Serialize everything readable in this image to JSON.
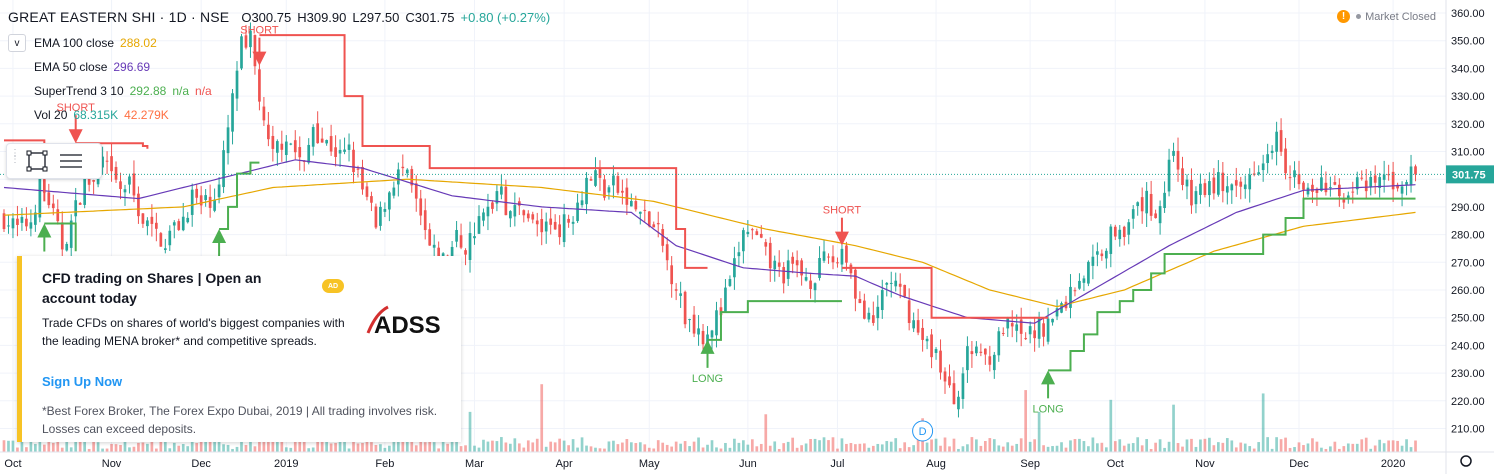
{
  "header": {
    "symbol": "GREAT EASTERN SHI · 1D · NSE",
    "open": "O300.75",
    "high": "H309.90",
    "low": "L297.50",
    "close": "C301.75",
    "change": "+0.80 (+0.27%)"
  },
  "status": {
    "warning_icon": "!",
    "text": "Market Closed"
  },
  "legend": {
    "ema100": {
      "label": "EMA 100 close",
      "value": "288.02",
      "color": "#e6a700"
    },
    "ema50": {
      "label": "EMA 50 close",
      "value": "296.69",
      "color": "#673ab7"
    },
    "supertrend": {
      "label": "SuperTrend 3 10",
      "value": "292.88",
      "na1": "n/a",
      "na2": "n/a",
      "color": "#4caf50"
    },
    "volume": {
      "label": "Vol 20",
      "value": "68.315K",
      "avg": "42.279K"
    }
  },
  "collapse_glyph": "v",
  "ad": {
    "title": "CFD trading on Shares | Open an account today",
    "badge": "AD",
    "logo_text": "ADSS",
    "body": "Trade CFDs on shares of world's biggest companies with the leading MENA broker* and competitive spreads.",
    "cta": "Sign Up Now",
    "disclaimer": "*Best Forex Broker, The Forex Expo Dubai, 2019 | All trading involves risk. Losses can exceed deposits."
  },
  "chart_data": {
    "type": "candlestick",
    "price_ticks": [
      210,
      220,
      230,
      240,
      250,
      260,
      270,
      280,
      290,
      300,
      310,
      320,
      330,
      340,
      350,
      360
    ],
    "price_tick_labels": [
      "210.00",
      "220.00",
      "230.00",
      "240.00",
      "250.00",
      "260.00",
      "270.00",
      "280.00",
      "290.00",
      "300.00",
      "310.00",
      "320.00",
      "330.00",
      "340.00",
      "350.00",
      "360.00"
    ],
    "ylim": [
      205,
      361
    ],
    "last_price": 301.75,
    "last_price_label": "301.75",
    "time_labels": [
      {
        "label": "Oct",
        "bar": 2
      },
      {
        "label": "Nov",
        "bar": 24
      },
      {
        "label": "Dec",
        "bar": 44
      },
      {
        "label": "2019",
        "bar": 63
      },
      {
        "label": "Feb",
        "bar": 85
      },
      {
        "label": "Mar",
        "bar": 105
      },
      {
        "label": "Apr",
        "bar": 125
      },
      {
        "label": "May",
        "bar": 144
      },
      {
        "label": "Jun",
        "bar": 166
      },
      {
        "label": "Jul",
        "bar": 186
      },
      {
        "label": "Aug",
        "bar": 208
      },
      {
        "label": "Sep",
        "bar": 229
      },
      {
        "label": "Oct",
        "bar": 248
      },
      {
        "label": "Nov",
        "bar": 268
      },
      {
        "label": "Dec",
        "bar": 289
      },
      {
        "label": "2020",
        "bar": 310
      }
    ],
    "bar_count": 316,
    "close_anchors": [
      [
        0,
        286
      ],
      [
        3,
        282
      ],
      [
        6,
        285
      ],
      [
        8,
        298
      ],
      [
        10,
        292
      ],
      [
        13,
        276
      ],
      [
        15,
        284
      ],
      [
        18,
        300
      ],
      [
        20,
        298
      ],
      [
        22,
        306
      ],
      [
        24,
        300
      ],
      [
        26,
        296
      ],
      [
        28,
        298
      ],
      [
        31,
        285
      ],
      [
        34,
        280
      ],
      [
        36,
        278
      ],
      [
        38,
        282
      ],
      [
        40,
        286
      ],
      [
        42,
        294
      ],
      [
        44,
        290
      ],
      [
        46,
        293
      ],
      [
        48,
        297
      ],
      [
        50,
        318
      ],
      [
        51,
        328
      ],
      [
        52,
        340
      ],
      [
        53,
        348
      ],
      [
        54,
        345
      ],
      [
        55,
        350
      ],
      [
        56,
        340
      ],
      [
        57,
        330
      ],
      [
        58,
        318
      ],
      [
        59,
        312
      ],
      [
        60,
        308
      ],
      [
        61,
        312
      ],
      [
        63,
        316
      ],
      [
        65,
        310
      ],
      [
        67,
        304
      ],
      [
        69,
        320
      ],
      [
        71,
        314
      ],
      [
        73,
        312
      ],
      [
        75,
        308
      ],
      [
        77,
        310
      ],
      [
        78,
        305
      ],
      [
        80,
        296
      ],
      [
        82,
        288
      ],
      [
        83,
        282
      ],
      [
        85,
        292
      ],
      [
        87,
        300
      ],
      [
        89,
        303
      ],
      [
        91,
        296
      ],
      [
        93,
        285
      ],
      [
        95,
        275
      ],
      [
        97,
        270
      ],
      [
        99,
        272
      ],
      [
        101,
        279
      ],
      [
        103,
        275
      ],
      [
        105,
        282
      ],
      [
        107,
        286
      ],
      [
        109,
        292
      ],
      [
        111,
        300
      ],
      [
        112,
        290
      ],
      [
        114,
        288
      ],
      [
        116,
        290
      ],
      [
        118,
        284
      ],
      [
        120,
        282
      ],
      [
        122,
        284
      ],
      [
        124,
        283
      ],
      [
        126,
        285
      ],
      [
        128,
        292
      ],
      [
        130,
        300
      ],
      [
        132,
        302
      ],
      [
        134,
        296
      ],
      [
        136,
        298
      ],
      [
        138,
        294
      ],
      [
        140,
        290
      ],
      [
        142,
        288
      ],
      [
        144,
        284
      ],
      [
        146,
        280
      ],
      [
        148,
        270
      ],
      [
        150,
        262
      ],
      [
        152,
        250
      ],
      [
        154,
        248
      ],
      [
        156,
        244
      ],
      [
        158,
        248
      ],
      [
        160,
        252
      ],
      [
        161,
        258
      ],
      [
        162,
        262
      ],
      [
        163,
        268
      ],
      [
        164,
        275
      ],
      [
        165,
        280
      ],
      [
        166,
        282
      ],
      [
        168,
        278
      ],
      [
        170,
        272
      ],
      [
        172,
        268
      ],
      [
        174,
        266
      ],
      [
        176,
        268
      ],
      [
        178,
        266
      ],
      [
        180,
        264
      ],
      [
        182,
        268
      ],
      [
        184,
        272
      ],
      [
        186,
        270
      ],
      [
        187,
        276
      ],
      [
        188,
        272
      ],
      [
        190,
        260
      ],
      [
        192,
        250
      ],
      [
        194,
        246
      ],
      [
        196,
        260
      ],
      [
        198,
        264
      ],
      [
        200,
        258
      ],
      [
        202,
        252
      ],
      [
        204,
        244
      ],
      [
        206,
        240
      ],
      [
        208,
        238
      ],
      [
        210,
        226
      ],
      [
        212,
        220
      ],
      [
        213,
        225
      ],
      [
        215,
        236
      ],
      [
        217,
        240
      ],
      [
        219,
        236
      ],
      [
        221,
        238
      ],
      [
        223,
        246
      ],
      [
        225,
        246
      ],
      [
        227,
        242
      ],
      [
        229,
        244
      ],
      [
        231,
        246
      ],
      [
        233,
        248
      ],
      [
        235,
        252
      ],
      [
        237,
        256
      ],
      [
        239,
        262
      ],
      [
        241,
        266
      ],
      [
        243,
        270
      ],
      [
        245,
        275
      ],
      [
        247,
        280
      ],
      [
        249,
        284
      ],
      [
        251,
        282
      ],
      [
        253,
        290
      ],
      [
        255,
        292
      ],
      [
        257,
        288
      ],
      [
        259,
        296
      ],
      [
        260,
        306
      ],
      [
        261,
        312
      ],
      [
        263,
        300
      ],
      [
        265,
        292
      ],
      [
        267,
        297
      ],
      [
        269,
        296
      ],
      [
        271,
        300
      ],
      [
        273,
        296
      ],
      [
        275,
        294
      ],
      [
        277,
        298
      ],
      [
        279,
        305
      ],
      [
        281,
        308
      ],
      [
        283,
        314
      ],
      [
        284,
        320
      ],
      [
        286,
        306
      ],
      [
        288,
        302
      ],
      [
        290,
        296
      ],
      [
        292,
        294
      ],
      [
        294,
        298
      ],
      [
        296,
        296
      ],
      [
        298,
        294
      ],
      [
        300,
        296
      ],
      [
        302,
        298
      ],
      [
        304,
        296
      ],
      [
        306,
        298
      ],
      [
        308,
        301
      ],
      [
        310,
        298
      ],
      [
        312,
        300
      ],
      [
        315,
        301.75
      ]
    ],
    "series": [
      {
        "name": "EMA 100 close",
        "color": "#e6a700",
        "anchors": [
          [
            0,
            287
          ],
          [
            40,
            290
          ],
          [
            60,
            297
          ],
          [
            90,
            300
          ],
          [
            120,
            297
          ],
          [
            145,
            292
          ],
          [
            170,
            282
          ],
          [
            190,
            276
          ],
          [
            205,
            270
          ],
          [
            220,
            260
          ],
          [
            235,
            254
          ],
          [
            250,
            260
          ],
          [
            270,
            274
          ],
          [
            290,
            283
          ],
          [
            315,
            288
          ]
        ]
      },
      {
        "name": "EMA 50 close",
        "color": "#673ab7",
        "anchors": [
          [
            0,
            297
          ],
          [
            30,
            293
          ],
          [
            55,
            303
          ],
          [
            65,
            307
          ],
          [
            80,
            304
          ],
          [
            100,
            294
          ],
          [
            120,
            290
          ],
          [
            140,
            288
          ],
          [
            150,
            276
          ],
          [
            165,
            268
          ],
          [
            180,
            266
          ],
          [
            190,
            265
          ],
          [
            200,
            258
          ],
          [
            215,
            250
          ],
          [
            230,
            248
          ],
          [
            245,
            262
          ],
          [
            260,
            276
          ],
          [
            275,
            288
          ],
          [
            290,
            296
          ],
          [
            315,
            298
          ]
        ]
      },
      {
        "name": "SuperTrend 3 10",
        "segments": [
          {
            "dir": "down",
            "color": "#ef5350",
            "points": [
              [
                0,
                314
              ],
              [
                8,
                314
              ],
              [
                9,
                292
              ]
            ]
          },
          {
            "dir": "down",
            "color": "#ef5350",
            "points": [
              [
                16,
                313
              ],
              [
                31,
                313
              ],
              [
                31,
                312
              ],
              [
                32,
                311
              ]
            ]
          },
          {
            "dir": "down",
            "color": "#ef5350",
            "points": [
              [
                57,
                352
              ],
              [
                72,
                352
              ],
              [
                76,
                330
              ],
              [
                80,
                312
              ],
              [
                95,
                312
              ],
              [
                95,
                304
              ],
              [
                145,
                304
              ],
              [
                150,
                282
              ],
              [
                152,
                268
              ],
              [
                157,
                268
              ]
            ]
          },
          {
            "dir": "down",
            "color": "#ef5350",
            "points": [
              [
                187,
                268
              ],
              [
                205,
                268
              ],
              [
                207,
                250
              ],
              [
                233,
                250
              ]
            ]
          },
          {
            "dir": "up",
            "color": "#4caf50",
            "points": [
              [
                9,
                284
              ],
              [
                15,
                284
              ],
              [
                16,
                276
              ],
              [
                16,
                274
              ]
            ]
          },
          {
            "dir": "up",
            "color": "#4caf50",
            "points": [
              [
                48,
                282
              ],
              [
                50,
                290
              ],
              [
                52,
                302
              ],
              [
                55,
                306
              ],
              [
                57,
                306
              ]
            ]
          },
          {
            "dir": "up",
            "color": "#4caf50",
            "points": [
              [
                157,
                242
              ],
              [
                160,
                252
              ],
              [
                166,
                256
              ],
              [
                187,
                256
              ]
            ]
          },
          {
            "dir": "up",
            "color": "#4caf50",
            "points": [
              [
                233,
                231
              ],
              [
                236,
                231
              ],
              [
                238,
                238
              ],
              [
                241,
                244
              ],
              [
                244,
                252
              ],
              [
                249,
                256
              ],
              [
                252,
                260
              ],
              [
                256,
                266
              ],
              [
                259,
                273
              ],
              [
                277,
                273
              ],
              [
                281,
                280
              ],
              [
                286,
                286
              ],
              [
                290,
                293
              ],
              [
                315,
                293
              ]
            ]
          }
        ]
      },
      {
        "name": "Volume",
        "color_up": "#26a69a",
        "color_down": "#ef5350"
      }
    ],
    "signals": [
      {
        "text": "LONG",
        "type": "long",
        "bar": 9,
        "price": 284
      },
      {
        "text": "SHORT",
        "type": "short",
        "bar": 16,
        "price": 313
      },
      {
        "text": "LONG",
        "type": "long",
        "bar": 48,
        "price": 282
      },
      {
        "text": "SHORT",
        "type": "short",
        "bar": 57,
        "price": 341
      },
      {
        "text": "LONG",
        "type": "long",
        "bar": 157,
        "price": 242
      },
      {
        "text": "SHORT",
        "type": "short",
        "bar": 187,
        "price": 276
      },
      {
        "text": "LONG",
        "type": "long",
        "bar": 233,
        "price": 231
      }
    ],
    "dividend_marker": {
      "text": "D",
      "bar": 205
    }
  }
}
